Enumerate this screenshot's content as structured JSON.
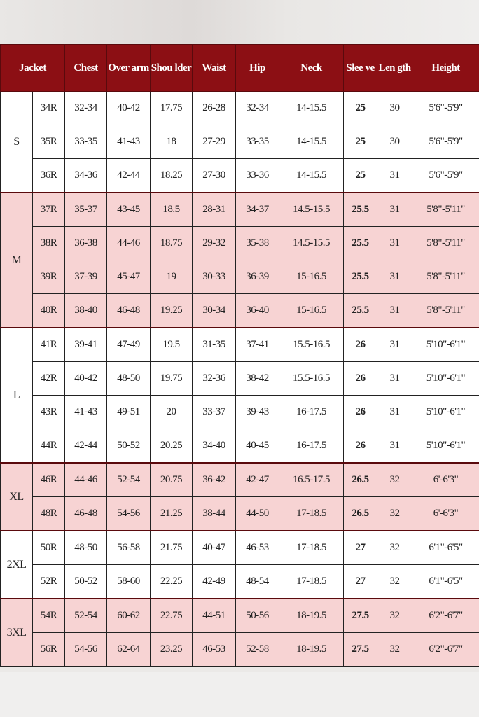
{
  "colors": {
    "header_bg": "#8c0f14",
    "pink_row": "#f7d3d3",
    "white_row": "#ffffff"
  },
  "headers": [
    "Jacket",
    "Chest",
    "Over arm",
    "Shou lder",
    "Waist",
    "Hip",
    "Neck",
    "Slee ve",
    "Len gth",
    "Height"
  ],
  "groups": [
    {
      "size": "S",
      "shade": "white",
      "rows": [
        [
          "34R",
          "32-34",
          "40-42",
          "17.75",
          "26-28",
          "32-34",
          "14-15.5",
          "25",
          "30",
          "5'6\"-5'9\""
        ],
        [
          "35R",
          "33-35",
          "41-43",
          "18",
          "27-29",
          "33-35",
          "14-15.5",
          "25",
          "30",
          "5'6\"-5'9\""
        ],
        [
          "36R",
          "34-36",
          "42-44",
          "18.25",
          "27-30",
          "33-36",
          "14-15.5",
          "25",
          "31",
          "5'6\"-5'9\""
        ]
      ]
    },
    {
      "size": "M",
      "shade": "pink",
      "rows": [
        [
          "37R",
          "35-37",
          "43-45",
          "18.5",
          "28-31",
          "34-37",
          "14.5-15.5",
          "25.5",
          "31",
          "5'8\"-5'11\""
        ],
        [
          "38R",
          "36-38",
          "44-46",
          "18.75",
          "29-32",
          "35-38",
          "14.5-15.5",
          "25.5",
          "31",
          "5'8\"-5'11\""
        ],
        [
          "39R",
          "37-39",
          "45-47",
          "19",
          "30-33",
          "36-39",
          "15-16.5",
          "25.5",
          "31",
          "5'8\"-5'11\""
        ],
        [
          "40R",
          "38-40",
          "46-48",
          "19.25",
          "30-34",
          "36-40",
          "15-16.5",
          "25.5",
          "31",
          "5'8\"-5'11\""
        ]
      ]
    },
    {
      "size": "L",
      "shade": "white",
      "rows": [
        [
          "41R",
          "39-41",
          "47-49",
          "19.5",
          "31-35",
          "37-41",
          "15.5-16.5",
          "26",
          "31",
          "5'10\"-6'1\""
        ],
        [
          "42R",
          "40-42",
          "48-50",
          "19.75",
          "32-36",
          "38-42",
          "15.5-16.5",
          "26",
          "31",
          "5'10\"-6'1\""
        ],
        [
          "43R",
          "41-43",
          "49-51",
          "20",
          "33-37",
          "39-43",
          "16-17.5",
          "26",
          "31",
          "5'10\"-6'1\""
        ],
        [
          "44R",
          "42-44",
          "50-52",
          "20.25",
          "34-40",
          "40-45",
          "16-17.5",
          "26",
          "31",
          "5'10\"-6'1\""
        ]
      ]
    },
    {
      "size": "XL",
      "shade": "pink",
      "rows": [
        [
          "46R",
          "44-46",
          "52-54",
          "20.75",
          "36-42",
          "42-47",
          "16.5-17.5",
          "26.5",
          "32",
          "6'-6'3\""
        ],
        [
          "48R",
          "46-48",
          "54-56",
          "21.25",
          "38-44",
          "44-50",
          "17-18.5",
          "26.5",
          "32",
          "6'-6'3\""
        ]
      ]
    },
    {
      "size": "2XL",
      "shade": "white",
      "rows": [
        [
          "50R",
          "48-50",
          "56-58",
          "21.75",
          "40-47",
          "46-53",
          "17-18.5",
          "27",
          "32",
          "6'1\"-6'5\""
        ],
        [
          "52R",
          "50-52",
          "58-60",
          "22.25",
          "42-49",
          "48-54",
          "17-18.5",
          "27",
          "32",
          "6'1\"-6'5\""
        ]
      ]
    },
    {
      "size": "3XL",
      "shade": "pink",
      "rows": [
        [
          "54R",
          "52-54",
          "60-62",
          "22.75",
          "44-51",
          "50-56",
          "18-19.5",
          "27.5",
          "32",
          "6'2\"-6'7\""
        ],
        [
          "56R",
          "54-56",
          "62-64",
          "23.25",
          "46-53",
          "52-58",
          "18-19.5",
          "27.5",
          "32",
          "6'2\"-6'7\""
        ]
      ]
    }
  ]
}
